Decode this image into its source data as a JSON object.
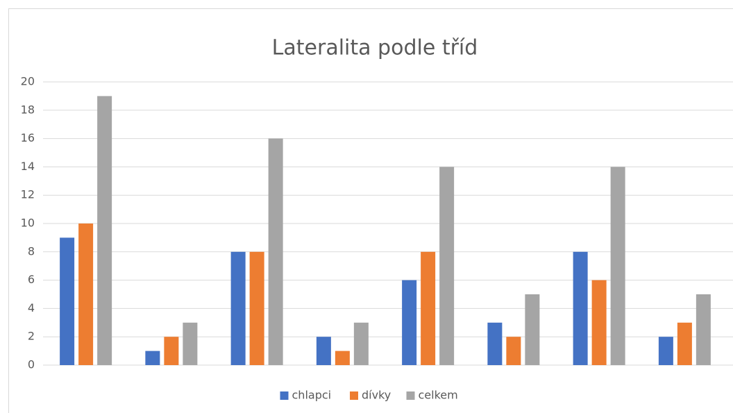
{
  "chart_data": {
    "type": "bar",
    "title": "Lateralita podle tříd",
    "categories": [
      null,
      null,
      null,
      null,
      null,
      null,
      null,
      null
    ],
    "series": [
      {
        "name": "chlapci",
        "color": "#4472c4",
        "values": [
          9,
          1,
          8,
          2,
          6,
          3,
          8,
          2
        ]
      },
      {
        "name": "dívky",
        "color": "#ed7d31",
        "values": [
          10,
          2,
          8,
          1,
          8,
          2,
          6,
          3
        ]
      },
      {
        "name": "celkem",
        "color": "#a5a5a5",
        "values": [
          19,
          3,
          16,
          3,
          14,
          5,
          14,
          5
        ]
      }
    ],
    "ylim": [
      0,
      20
    ],
    "yticks": [
      0,
      2,
      4,
      6,
      8,
      10,
      12,
      14,
      16,
      18,
      20
    ],
    "grid": true,
    "legend": "bottom"
  }
}
